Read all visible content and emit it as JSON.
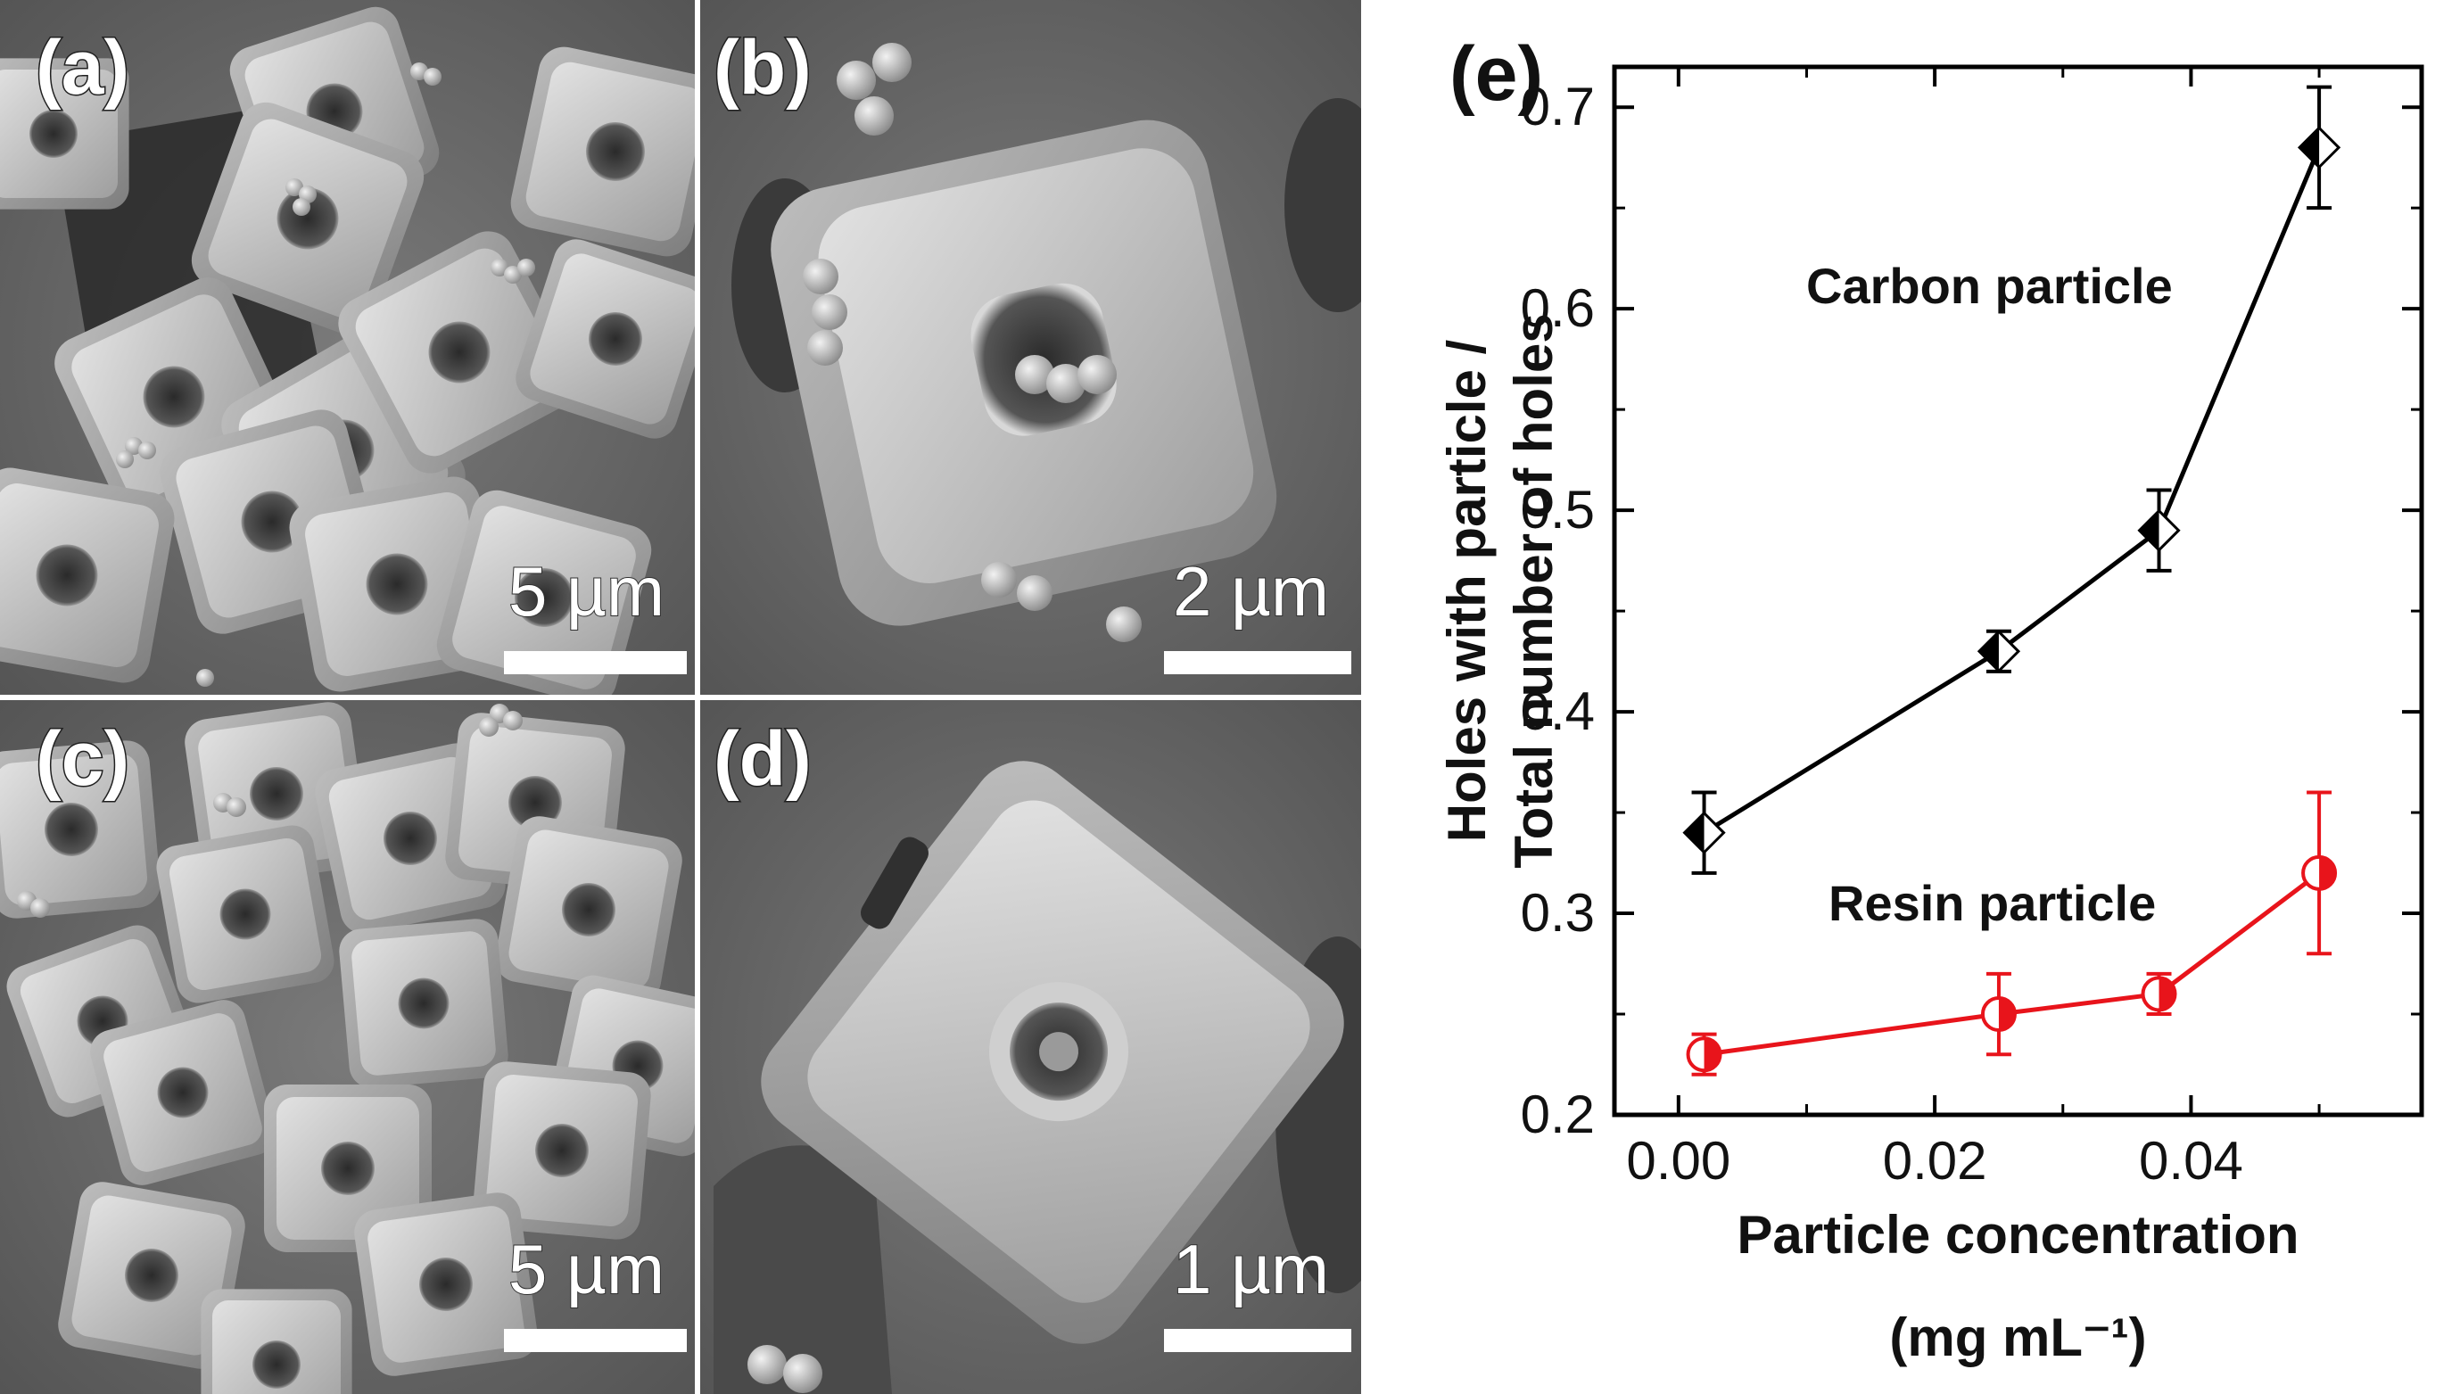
{
  "panels": {
    "a": {
      "label": "(a)",
      "scale_bar": "5 µm"
    },
    "b": {
      "label": "(b)",
      "scale_bar": "2 µm"
    },
    "c": {
      "label": "(c)",
      "scale_bar": "5 µm"
    },
    "d": {
      "label": "(d)",
      "scale_bar": "1 µm"
    }
  },
  "chart_label": "(e)",
  "chart_data": {
    "type": "line",
    "xlabel": "Particle concentration",
    "xlabel_unit": "(mg mL⁻¹)",
    "ylabel_line1": "Holes with particle /",
    "ylabel_line2": "Total number of holes",
    "xlim": [
      -0.005,
      0.058
    ],
    "ylim": [
      0.2,
      0.72
    ],
    "xticks": [
      {
        "value": 0.0,
        "label": "0.00"
      },
      {
        "value": 0.02,
        "label": "0.02"
      },
      {
        "value": 0.04,
        "label": "0.04"
      }
    ],
    "yticks": [
      {
        "value": 0.2,
        "label": "0.2"
      },
      {
        "value": 0.3,
        "label": "0.3"
      },
      {
        "value": 0.4,
        "label": "0.4"
      },
      {
        "value": 0.5,
        "label": "0.5"
      },
      {
        "value": 0.6,
        "label": "0.6"
      },
      {
        "value": 0.7,
        "label": "0.7"
      }
    ],
    "series": [
      {
        "name": "Carbon particle",
        "color": "#000000",
        "marker": "half-filled-diamond",
        "x": [
          0.002,
          0.025,
          0.0375,
          0.05
        ],
        "y": [
          0.34,
          0.43,
          0.49,
          0.68
        ],
        "err": [
          0.02,
          0.01,
          0.02,
          0.03
        ]
      },
      {
        "name": "Resin particle",
        "color": "#e8141b",
        "marker": "half-filled-circle",
        "x": [
          0.002,
          0.025,
          0.0375,
          0.05
        ],
        "y": [
          0.23,
          0.25,
          0.26,
          0.32
        ],
        "err": [
          0.01,
          0.02,
          0.01,
          0.04
        ]
      }
    ]
  }
}
